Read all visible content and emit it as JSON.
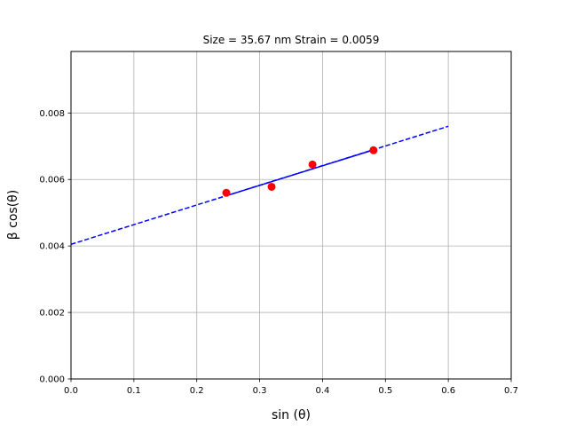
{
  "chart_data": {
    "type": "scatter",
    "title": "Size = 35.67 nm  Strain = 0.0059",
    "xlabel": "sin (θ)",
    "ylabel": "β cos(θ)",
    "xlim": [
      0.0,
      0.7
    ],
    "ylim": [
      0.0,
      0.00985
    ],
    "grid": true,
    "xticks": [
      0.0,
      0.1,
      0.2,
      0.3,
      0.4,
      0.5,
      0.6,
      0.7
    ],
    "xtick_labels": [
      "0.0",
      "0.1",
      "0.2",
      "0.3",
      "0.4",
      "0.5",
      "0.6",
      "0.7"
    ],
    "yticks": [
      0.0,
      0.002,
      0.004,
      0.006,
      0.008
    ],
    "ytick_labels": [
      "0.000",
      "0.002",
      "0.004",
      "0.006",
      "0.008"
    ],
    "points": {
      "x": [
        0.247,
        0.319,
        0.384,
        0.481
      ],
      "y": [
        0.0056,
        0.00578,
        0.00645,
        0.00688
      ],
      "color": "#ff0000"
    },
    "fit_solid": {
      "x": [
        0.247,
        0.481
      ],
      "y": [
        0.00551,
        0.00689
      ],
      "color": "#0000ff"
    },
    "fit_dashed": {
      "x": [
        0.0,
        0.6
      ],
      "y": [
        0.00405,
        0.0076
      ],
      "color": "#0000ff"
    }
  }
}
